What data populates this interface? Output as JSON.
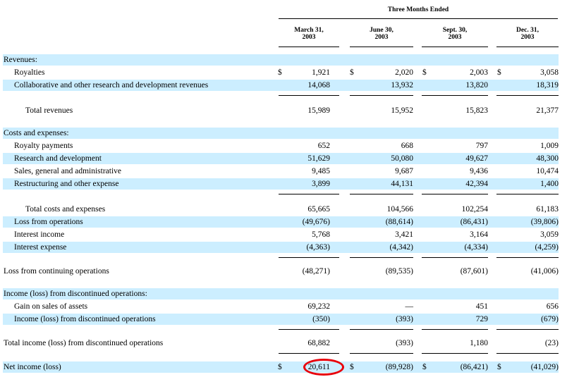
{
  "header": {
    "group_title": "Three Months Ended",
    "columns": [
      {
        "line1": "March 31,",
        "line2": "2003"
      },
      {
        "line1": "June 30,",
        "line2": "2003"
      },
      {
        "line1": "Sept. 30,",
        "line2": "2003"
      },
      {
        "line1": "Dec. 31,",
        "line2": "2003"
      }
    ]
  },
  "rows": [
    {
      "label": "Revenues:",
      "indent": 0,
      "shade": true,
      "values": [
        "",
        "",
        "",
        ""
      ],
      "currency": false
    },
    {
      "label": "Royalties",
      "indent": 1,
      "shade": false,
      "values": [
        "1,921",
        "2,020",
        "2,003",
        "3,058"
      ],
      "currency": true
    },
    {
      "label": "Collaborative and other research and development revenues",
      "indent": 1,
      "shade": true,
      "values": [
        "14,068",
        "13,932",
        "13,820",
        "18,319"
      ],
      "currency": false
    },
    {
      "label": "Total revenues",
      "indent": 2,
      "shade": false,
      "values": [
        "15,989",
        "15,952",
        "15,823",
        "21,377"
      ],
      "currency": false
    },
    {
      "label": "Costs and expenses:",
      "indent": 0,
      "shade": true,
      "values": [
        "",
        "",
        "",
        ""
      ],
      "currency": false
    },
    {
      "label": "Royalty payments",
      "indent": 1,
      "shade": false,
      "values": [
        "652",
        "668",
        "797",
        "1,009"
      ],
      "currency": false
    },
    {
      "label": "Research and development",
      "indent": 1,
      "shade": true,
      "values": [
        "51,629",
        "50,080",
        "49,627",
        "48,300"
      ],
      "currency": false
    },
    {
      "label": "Sales, general and administrative",
      "indent": 1,
      "shade": false,
      "values": [
        "9,485",
        "9,687",
        "9,436",
        "10,474"
      ],
      "currency": false
    },
    {
      "label": "Restructuring and other expense",
      "indent": 1,
      "shade": true,
      "values": [
        "3,899",
        "44,131",
        "42,394",
        "1,400"
      ],
      "currency": false
    },
    {
      "label": "Total costs and expenses",
      "indent": 2,
      "shade": false,
      "values": [
        "65,665",
        "104,566",
        "102,254",
        "61,183"
      ],
      "currency": false
    },
    {
      "label": "Loss from operations",
      "indent": 1,
      "shade": true,
      "values": [
        "(49,676)",
        "(88,614)",
        "(86,431)",
        "(39,806)"
      ],
      "currency": false
    },
    {
      "label": "Interest income",
      "indent": 1,
      "shade": false,
      "values": [
        "5,768",
        "3,421",
        "3,164",
        "3,059"
      ],
      "currency": false
    },
    {
      "label": "Interest expense",
      "indent": 1,
      "shade": true,
      "values": [
        "(4,363)",
        "(4,342)",
        "(4,334)",
        "(4,259)"
      ],
      "currency": false
    },
    {
      "label": "Loss from continuing operations",
      "indent": 0,
      "shade": false,
      "values": [
        "(48,271)",
        "(89,535)",
        "(87,601)",
        "(41,006)"
      ],
      "currency": false
    },
    {
      "label": "Income (loss) from discontinued operations:",
      "indent": 0,
      "shade": true,
      "values": [
        "",
        "",
        "",
        ""
      ],
      "currency": false
    },
    {
      "label": "Gain on sales of assets",
      "indent": 1,
      "shade": false,
      "values": [
        "69,232",
        "—",
        "451",
        "656"
      ],
      "currency": false
    },
    {
      "label": "Income (loss) from discontinued operations",
      "indent": 1,
      "shade": true,
      "values": [
        "(350)",
        "(393)",
        "729",
        "(679)"
      ],
      "currency": false
    },
    {
      "label": "Total income (loss) from discontinued operations",
      "indent": 0,
      "shade": false,
      "values": [
        "68,882",
        "(393)",
        "1,180",
        "(23)"
      ],
      "currency": false
    },
    {
      "label": "Net income (loss)",
      "indent": 0,
      "shade": true,
      "values": [
        "20,611",
        "(89,928)",
        "(86,421)",
        "(41,029)"
      ],
      "currency": true
    }
  ],
  "currency_symbol": "$",
  "highlight": {
    "value": "20,611",
    "color": "#e8000a"
  }
}
